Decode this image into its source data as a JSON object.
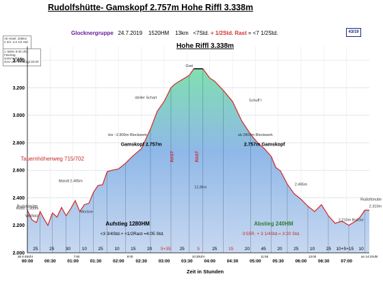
{
  "header": {
    "title": "Rudolfshütte- Gamskopf 2.757m Hohe Riffl 3.338m",
    "group": "Glocknergruppe",
    "date": "24.7.2019",
    "ascent": "1520HM",
    "distance": "13km",
    "time": "<7Std.",
    "rest_label": "+ 1/2Std. Rast",
    "total": "= <7 1/2Std.",
    "page_badge": "43/19"
  },
  "notes": {
    "box1_line1": "Ab Hotel: 200km",
    "box1_line2": "2 3/4 -4.0 1/4 Std.",
    "box2_line1": "1. Bahn 8.00 Uhr Feiertag,",
    "box2_line2": "sonst 9.00Uhr",
    "box2_line3": "ÖAV use. ermäßigt 20.00"
  },
  "chart_data": {
    "type": "area",
    "title": "Hohe Riffl 3.338m",
    "xlabel": "Zeit in Stunden",
    "ylabel": "",
    "xlim": [
      0,
      7.5
    ],
    "ylim": [
      2000,
      3500
    ],
    "y_ticks": [
      "2.000",
      "2.200",
      "2.400",
      "2.600",
      "2.800",
      "3.000",
      "3.200",
      "3.400"
    ],
    "y_tick_values": [
      2000,
      2200,
      2400,
      2600,
      2800,
      3000,
      3200,
      3400
    ],
    "x_ticks": [
      "00:00",
      "00:30",
      "01:00",
      "01:30",
      "02:00",
      "02:30",
      "03:00",
      "03:30",
      "04:00",
      "04:30",
      "05:00",
      "05:30",
      "06:00",
      "06:30",
      "07:00"
    ],
    "x_tick_values": [
      0,
      0.5,
      1,
      1.5,
      2,
      2.5,
      3,
      3.5,
      4,
      4.5,
      5,
      5.5,
      6,
      6.5,
      7
    ],
    "grid": true,
    "series": [
      {
        "values_x": [
          0,
          0.1,
          0.2,
          0.28,
          0.36,
          0.45,
          0.55,
          0.65,
          0.75,
          0.85,
          0.95,
          1.05,
          1.15,
          1.25,
          1.35,
          1.45,
          1.55,
          1.65,
          1.75,
          1.85,
          2.0,
          2.15,
          2.3,
          2.5,
          2.7,
          2.85,
          3.0,
          3.15,
          3.25,
          3.4,
          3.55,
          3.65,
          3.75,
          3.85,
          4.0,
          4.1,
          4.3,
          4.5,
          4.7,
          4.9,
          5.05,
          5.2,
          5.35,
          5.45,
          5.55,
          5.7,
          5.85,
          6.0,
          6.15,
          6.3,
          6.45,
          6.6,
          6.75,
          6.9,
          7.05,
          7.2,
          7.3,
          7.4,
          7.5
        ],
        "values_y": [
          2310,
          2240,
          2220,
          2300,
          2250,
          2200,
          2290,
          2260,
          2330,
          2270,
          2320,
          2380,
          2300,
          2350,
          2360,
          2440,
          2490,
          2495,
          2590,
          2600,
          2610,
          2650,
          2700,
          2757,
          2900,
          3030,
          3100,
          3200,
          3230,
          3260,
          3290,
          3338,
          3338,
          3338,
          3270,
          3250,
          3180,
          3100,
          2960,
          2860,
          2800,
          2757,
          2700,
          2620,
          2596,
          2500,
          2430,
          2390,
          2340,
          2300,
          2350,
          2270,
          2215,
          2230,
          2200,
          2230,
          2260,
          2310,
          2310
        ]
      }
    ],
    "annotations": [
      {
        "text": "Rudolfshütte",
        "x": 0.0,
        "y": 2310
      },
      {
        "text": "2.310m",
        "x": 7.5,
        "y": 2310
      },
      {
        "text": "Rudolfshütte",
        "x": 7.5,
        "y": 2360
      },
      {
        "text": "Hütte 2.300m",
        "x": 0.0,
        "y": 2295
      },
      {
        "text": "Gamskopf 2.757m",
        "x": 2.5,
        "y": 2757
      },
      {
        "text": "2.757m Gamskopf",
        "x": 5.2,
        "y": 2757
      },
      {
        "text": "Grat",
        "x": 3.55,
        "y": 3330
      },
      {
        "text": "Tauernhöhenweg 715/702",
        "x": 0.55,
        "y": 2650
      },
      {
        "text": "Aufstieg 1280HM",
        "x": 2.2,
        "y": 2180
      },
      {
        "text": "Abstieg 240HM",
        "x": 5.4,
        "y": 2180
      },
      {
        "text": "12,8km",
        "x": 3.8,
        "y": 2450
      },
      {
        "text": "RAST",
        "x": 3.2,
        "y": 2700
      },
      {
        "text": "RAST",
        "x": 3.75,
        "y": 2700
      },
      {
        "text": "Schuff I",
        "x": 5.0,
        "y": 3080
      },
      {
        "text": "steiler Schart",
        "x": 2.6,
        "y": 3100
      },
      {
        "text": "ab 2800m Blockwerk",
        "x": 5.0,
        "y": 2830
      },
      {
        "text": "bis ~2.800m Blockwerk",
        "x": 2.2,
        "y": 2830
      },
      {
        "text": "Mandl 2.495m",
        "x": 0.95,
        "y": 2495
      },
      {
        "text": "2.495m",
        "x": 6.0,
        "y": 2470
      },
      {
        "text": "Moräne",
        "x": 1.3,
        "y": 2270
      },
      {
        "text": "Wolllatz",
        "x": 0.1,
        "y": 2240
      },
      {
        "text": "2.210m Brücke",
        "x": 7.1,
        "y": 2210
      }
    ],
    "rows": {
      "minutes_row": [
        "25",
        "25",
        "30",
        "10",
        "25",
        "10",
        "15",
        "20",
        "5+35",
        "25",
        "5",
        "25",
        "15",
        "20",
        "45",
        "20",
        "25",
        "10",
        "25",
        "10+5+15",
        "10"
      ],
      "ascent_summary": "<3 3/4Std.+ <1/2Rast =4:05 Std.",
      "descent_summary": "0:55R. + 3 1/4Std.= 3:20 Std.",
      "clock_start": "ab 6:45Uhr",
      "clock_end": "an 14:10Uhr",
      "clock_mid1": "7:50",
      "clock_mid2": "9:00",
      "clock_mid3": "10:30Uhr",
      "clock_mid4": "11:55",
      "clock_mid5": "13:00"
    }
  }
}
